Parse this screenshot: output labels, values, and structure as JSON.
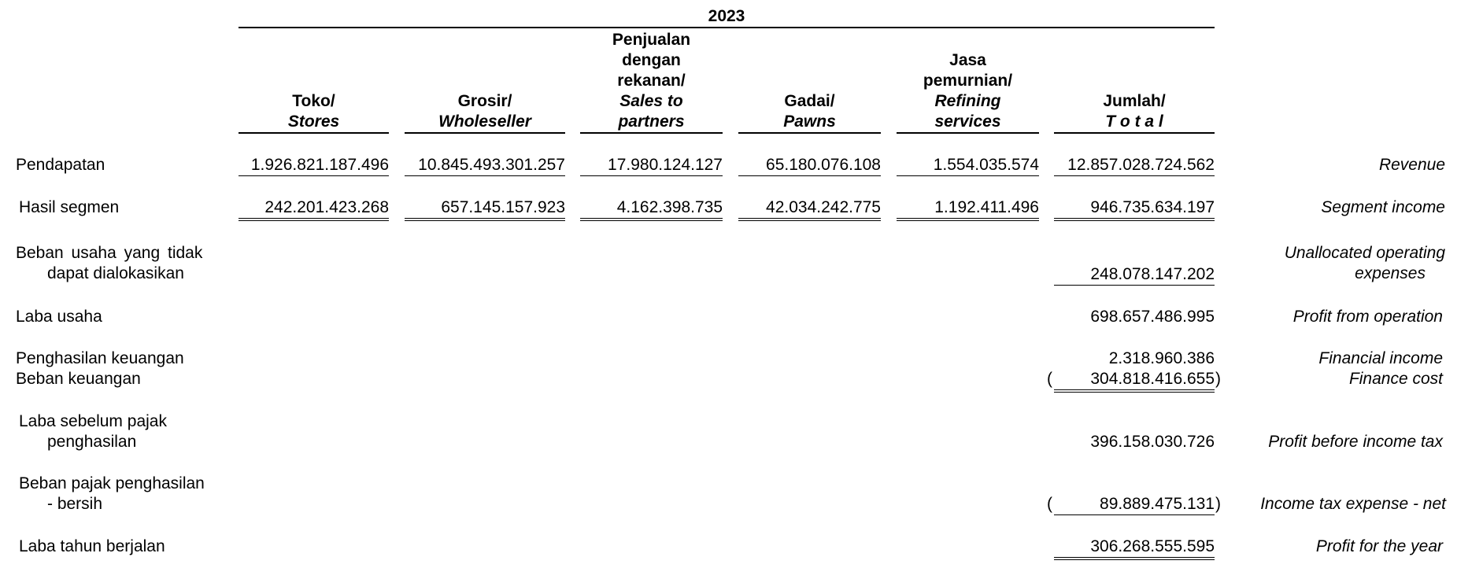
{
  "year": "2023",
  "columns": [
    {
      "id": "toko",
      "id_label": "Toko/",
      "en_label": "Stores"
    },
    {
      "id": "grosir",
      "id_label": "Grosir/",
      "en_label": "Wholeseller"
    },
    {
      "id": "penjualan",
      "id_label_lines": [
        "Penjualan",
        "dengan",
        "rekanan/"
      ],
      "en_label_lines": [
        "Sales to",
        "partners"
      ]
    },
    {
      "id": "gadai",
      "id_label": "Gadai/",
      "en_label": "Pawns"
    },
    {
      "id": "jasa",
      "id_label_lines": [
        "Jasa",
        "pemurnian/"
      ],
      "en_label_lines": [
        "Refining",
        "services"
      ]
    },
    {
      "id": "jumlah",
      "id_label": "Jumlah/",
      "en_label": "T o t a l"
    }
  ],
  "rows": {
    "revenue": {
      "label_id": "Pendapatan",
      "label_en": "Revenue",
      "values": [
        "1.926.821.187.496",
        "10.845.493.301.257",
        "17.980.124.127",
        "65.180.076.108",
        "1.554.035.574",
        "12.857.028.724.562"
      ]
    },
    "segment_income": {
      "label_id": "Hasil segmen",
      "label_en": "Segment income",
      "values": [
        "242.201.423.268",
        "657.145.157.923",
        "4.162.398.735",
        "42.034.242.775",
        "1.192.411.496",
        "946.735.634.197"
      ]
    },
    "unallocated": {
      "label_id_lines": [
        "Beban usaha yang tidak",
        "dapat dialokasikan"
      ],
      "label_en_lines": [
        "Unallocated operating",
        "expenses"
      ],
      "total": "248.078.147.202"
    },
    "profit_operation": {
      "label_id": "Laba usaha",
      "label_en": "Profit from operation",
      "total": "698.657.486.995"
    },
    "financial_income": {
      "label_id": "Penghasilan keuangan",
      "label_en": "Financial income",
      "total": "2.318.960.386"
    },
    "finance_cost": {
      "label_id": "Beban keuangan",
      "label_en": "Finance cost",
      "total": "304.818.416.655",
      "paren_open": "(",
      "paren_close": ")"
    },
    "profit_before_tax": {
      "label_id_lines": [
        "Laba sebelum pajak",
        "penghasilan"
      ],
      "label_en": "Profit before income tax",
      "total": "396.158.030.726"
    },
    "income_tax": {
      "label_id_lines": [
        "Beban pajak penghasilan",
        "- bersih"
      ],
      "label_en": "Income tax expense - net",
      "total": "89.889.475.131",
      "paren_open": "(",
      "paren_close": ")"
    },
    "profit_year": {
      "label_id": "Laba tahun berjalan",
      "label_en": "Profit for the year",
      "total": "306.268.555.595"
    }
  }
}
